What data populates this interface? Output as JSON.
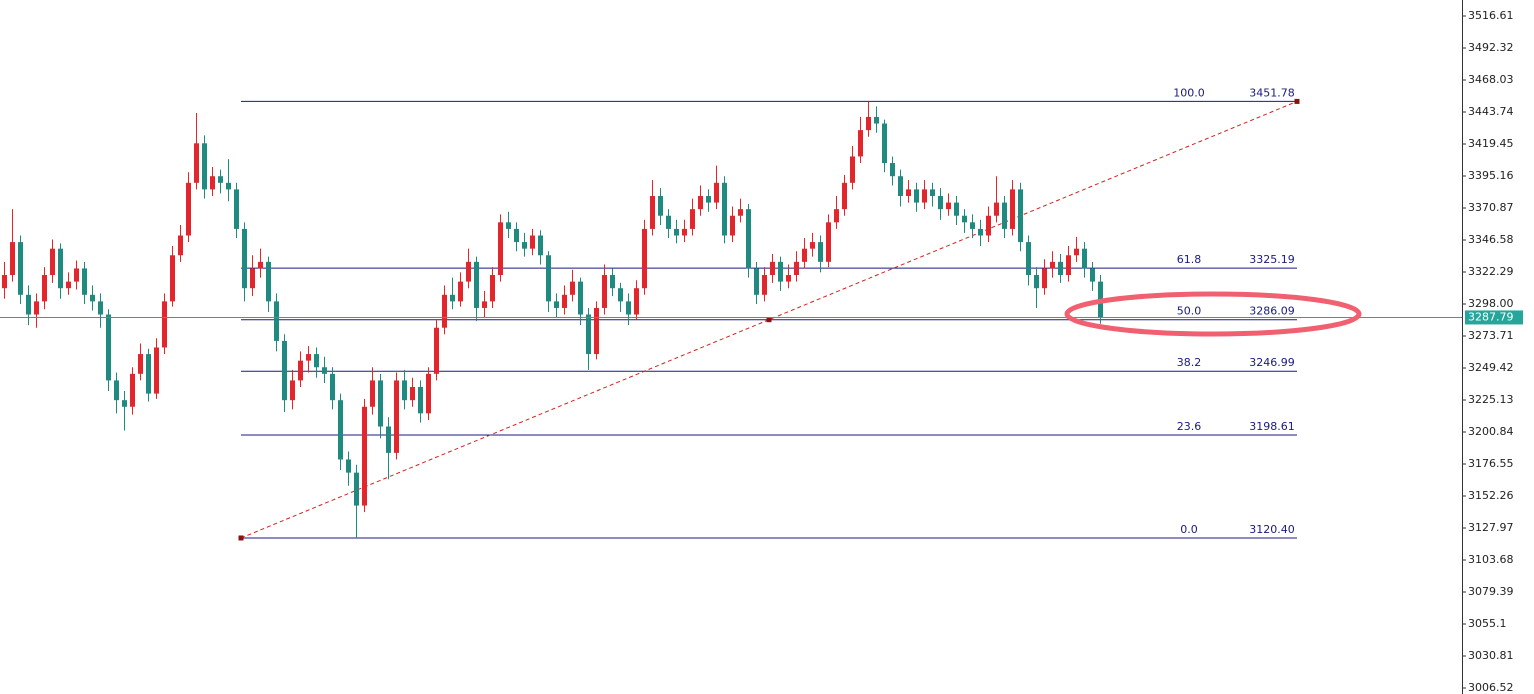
{
  "chart_data": {
    "type": "candlestick",
    "up_color": "#e3262b",
    "down_color": "#1f8a80",
    "open": [
      3310,
      3320,
      3345,
      3305,
      3290,
      3300,
      3320,
      3340,
      3310,
      3315,
      3325,
      3305,
      3300,
      3290,
      3240,
      3225,
      3220,
      3245,
      3260,
      3230,
      3265,
      3300,
      3335,
      3350,
      3390,
      3420,
      3385,
      3395,
      3390,
      3385,
      3355,
      3310,
      3325,
      3330,
      3300,
      3270,
      3225,
      3240,
      3255,
      3260,
      3250,
      3245,
      3225,
      3180,
      3170,
      3145,
      3220,
      3240,
      3205,
      3185,
      3240,
      3225,
      3235,
      3215,
      3245,
      3280,
      3305,
      3300,
      3315,
      3330,
      3295,
      3300,
      3320,
      3360,
      3355,
      3345,
      3340,
      3350,
      3335,
      3300,
      3295,
      3305,
      3315,
      3290,
      3260,
      3295,
      3320,
      3310,
      3300,
      3290,
      3310,
      3355,
      3380,
      3365,
      3355,
      3350,
      3355,
      3370,
      3380,
      3375,
      3390,
      3350,
      3365,
      3370,
      3325,
      3305,
      3320,
      3330,
      3315,
      3320,
      3330,
      3340,
      3345,
      3330,
      3360,
      3370,
      3390,
      3410,
      3430,
      3440,
      3435,
      3405,
      3395,
      3380,
      3385,
      3375,
      3385,
      3380,
      3370,
      3375,
      3365,
      3360,
      3355,
      3350,
      3365,
      3375,
      3355,
      3385,
      3345,
      3320,
      3310,
      3325,
      3330,
      3320,
      3335,
      3340,
      3325,
      3315
    ],
    "high": [
      3330,
      3370,
      3350,
      3312,
      3306,
      3326,
      3347,
      3344,
      3322,
      3331,
      3330,
      3312,
      3306,
      3294,
      3246,
      3232,
      3250,
      3268,
      3264,
      3272,
      3306,
      3342,
      3358,
      3398,
      3443,
      3426,
      3402,
      3400,
      3408,
      3390,
      3360,
      3335,
      3340,
      3334,
      3306,
      3275,
      3248,
      3262,
      3266,
      3265,
      3258,
      3250,
      3230,
      3186,
      3176,
      3226,
      3250,
      3245,
      3212,
      3246,
      3248,
      3242,
      3240,
      3250,
      3286,
      3312,
      3318,
      3322,
      3340,
      3334,
      3308,
      3326,
      3366,
      3368,
      3360,
      3352,
      3355,
      3354,
      3338,
      3306,
      3312,
      3324,
      3318,
      3295,
      3300,
      3328,
      3325,
      3314,
      3306,
      3316,
      3362,
      3392,
      3386,
      3370,
      3362,
      3362,
      3378,
      3388,
      3385,
      3403,
      3395,
      3372,
      3378,
      3374,
      3330,
      3326,
      3336,
      3334,
      3328,
      3338,
      3348,
      3352,
      3350,
      3366,
      3380,
      3396,
      3418,
      3440,
      3451.78,
      3448,
      3438,
      3410,
      3400,
      3392,
      3390,
      3392,
      3390,
      3386,
      3382,
      3380,
      3370,
      3366,
      3362,
      3372,
      3395,
      3380,
      3392,
      3390,
      3350,
      3326,
      3332,
      3338,
      3336,
      3342,
      3349,
      3345,
      3330,
      3320
    ],
    "low": [
      3302,
      3315,
      3298,
      3282,
      3280,
      3294,
      3314,
      3302,
      3305,
      3309,
      3298,
      3293,
      3280,
      3232,
      3215,
      3202,
      3214,
      3240,
      3224,
      3226,
      3260,
      3296,
      3330,
      3345,
      3385,
      3378,
      3380,
      3382,
      3376,
      3348,
      3300,
      3304,
      3318,
      3292,
      3262,
      3216,
      3218,
      3235,
      3246,
      3242,
      3238,
      3218,
      3172,
      3160,
      3120.4,
      3140,
      3214,
      3196,
      3165,
      3180,
      3218,
      3220,
      3208,
      3210,
      3240,
      3275,
      3294,
      3296,
      3310,
      3285,
      3288,
      3295,
      3315,
      3348,
      3338,
      3334,
      3335,
      3328,
      3292,
      3288,
      3290,
      3300,
      3282,
      3248,
      3256,
      3290,
      3304,
      3292,
      3282,
      3286,
      3305,
      3350,
      3358,
      3348,
      3344,
      3345,
      3350,
      3365,
      3368,
      3370,
      3344,
      3345,
      3360,
      3318,
      3298,
      3300,
      3314,
      3308,
      3310,
      3315,
      3325,
      3334,
      3322,
      3326,
      3355,
      3365,
      3385,
      3405,
      3425,
      3428,
      3398,
      3388,
      3372,
      3375,
      3368,
      3370,
      3372,
      3362,
      3365,
      3358,
      3352,
      3348,
      3342,
      3345,
      3360,
      3348,
      3350,
      3338,
      3312,
      3295,
      3305,
      3318,
      3314,
      3315,
      3330,
      3318,
      3308,
      3283
    ],
    "close": [
      3320,
      3345,
      3305,
      3290,
      3300,
      3320,
      3340,
      3310,
      3315,
      3325,
      3305,
      3300,
      3290,
      3240,
      3225,
      3220,
      3245,
      3260,
      3230,
      3265,
      3300,
      3335,
      3350,
      3390,
      3420,
      3385,
      3395,
      3390,
      3385,
      3355,
      3310,
      3325,
      3330,
      3300,
      3270,
      3225,
      3240,
      3255,
      3260,
      3250,
      3245,
      3225,
      3180,
      3170,
      3145,
      3220,
      3240,
      3205,
      3185,
      3240,
      3225,
      3235,
      3215,
      3245,
      3280,
      3305,
      3300,
      3315,
      3330,
      3295,
      3300,
      3320,
      3360,
      3355,
      3345,
      3340,
      3350,
      3335,
      3300,
      3295,
      3305,
      3315,
      3290,
      3260,
      3295,
      3320,
      3310,
      3300,
      3290,
      3310,
      3355,
      3380,
      3365,
      3355,
      3350,
      3355,
      3370,
      3380,
      3375,
      3390,
      3350,
      3365,
      3370,
      3325,
      3305,
      3320,
      3330,
      3315,
      3320,
      3330,
      3340,
      3345,
      3330,
      3360,
      3370,
      3390,
      3410,
      3430,
      3440,
      3435,
      3405,
      3395,
      3380,
      3385,
      3375,
      3385,
      3380,
      3370,
      3375,
      3365,
      3360,
      3355,
      3350,
      3365,
      3375,
      3355,
      3385,
      3345,
      3320,
      3310,
      3325,
      3330,
      3320,
      3335,
      3340,
      3325,
      3315,
      3287.79
    ],
    "ylim": [
      3001.97,
      3528.76
    ],
    "yticks": [
      3516.61,
      3492.32,
      3468.03,
      3443.74,
      3419.45,
      3395.16,
      3370.87,
      3346.58,
      3322.29,
      {
        "value": 3298,
        "label": "3298.00"
      },
      3273.71,
      3249.42,
      3225.13,
      3200.84,
      3176.55,
      3152.26,
      3127.97,
      3103.68,
      3079.39,
      3055.1,
      3030.81,
      3006.52
    ],
    "last_price": 3287.79,
    "last_price_color": "#26a69a",
    "fibonacci": {
      "color": "#1a1a80",
      "trend_color": "#d42020",
      "levels": [
        {
          "ratio": "100.0",
          "price": 3451.78
        },
        {
          "ratio": "61.8",
          "price": 3325.19
        },
        {
          "ratio": "50.0",
          "price": 3286.09
        },
        {
          "ratio": "38.2",
          "price": 3246.99
        },
        {
          "ratio": "23.6",
          "price": 3198.61
        },
        {
          "ratio": "0.0",
          "price": {
            "value": 3120.4,
            "label": "3120.40"
          }
        }
      ]
    }
  }
}
